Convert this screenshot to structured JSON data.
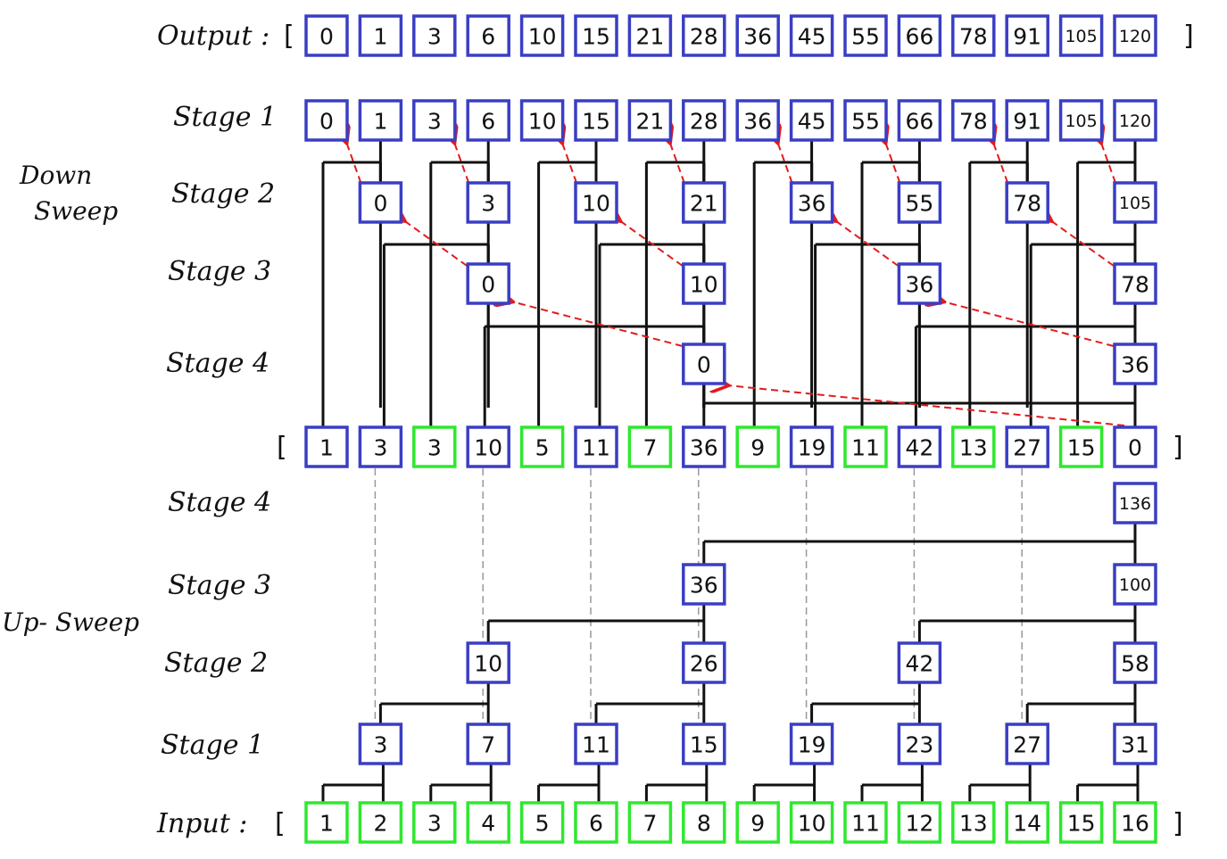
{
  "labels": {
    "output": "Output :",
    "input": "Input :",
    "down_sweep_line1": "Down",
    "down_sweep_line2": "Sweep",
    "up_sweep": "Up- Sweep",
    "open_bracket": "[",
    "close_bracket": "]"
  },
  "output_values": [
    "0",
    "1",
    "3",
    "6",
    "10",
    "15",
    "21",
    "28",
    "36",
    "45",
    "55",
    "66",
    "78",
    "91",
    "105",
    "120"
  ],
  "down_sweep": {
    "stage1": {
      "label": "Stage 1",
      "values": [
        "0",
        "1",
        "3",
        "6",
        "10",
        "15",
        "21",
        "28",
        "36",
        "45",
        "55",
        "66",
        "78",
        "91",
        "105",
        "120"
      ]
    },
    "stage2": {
      "label": "Stage 2",
      "values": [
        "0",
        "3",
        "10",
        "21",
        "36",
        "55",
        "78",
        "105"
      ]
    },
    "stage3": {
      "label": "Stage 3",
      "values": [
        "0",
        "10",
        "36",
        "78"
      ]
    },
    "stage4": {
      "label": "Stage 4",
      "values": [
        "0",
        "36"
      ]
    }
  },
  "middle_row": {
    "values": [
      "1",
      "3",
      "3",
      "10",
      "5",
      "11",
      "7",
      "36",
      "9",
      "19",
      "11",
      "42",
      "13",
      "27",
      "15",
      "0"
    ],
    "colors": [
      "blue",
      "blue",
      "green",
      "blue",
      "green",
      "blue",
      "green",
      "blue",
      "green",
      "blue",
      "green",
      "blue",
      "green",
      "blue",
      "green",
      "blue"
    ]
  },
  "up_sweep": {
    "stage4": {
      "label": "Stage 4",
      "values": [
        "136"
      ]
    },
    "stage3": {
      "label": "Stage 3",
      "values": [
        "36",
        "100"
      ]
    },
    "stage2": {
      "label": "Stage 2",
      "values": [
        "10",
        "26",
        "42",
        "58"
      ]
    },
    "stage1": {
      "label": "Stage 1",
      "values": [
        "3",
        "7",
        "11",
        "15",
        "19",
        "23",
        "27",
        "31"
      ]
    }
  },
  "input_values": [
    "1",
    "2",
    "3",
    "4",
    "5",
    "6",
    "7",
    "8",
    "9",
    "10",
    "11",
    "12",
    "13",
    "14",
    "15",
    "16"
  ],
  "colors": {
    "blue": "#3a3ec4",
    "green": "#2ee82e",
    "red_arrow": "#e21b1b",
    "gray_dash": "#999999"
  }
}
